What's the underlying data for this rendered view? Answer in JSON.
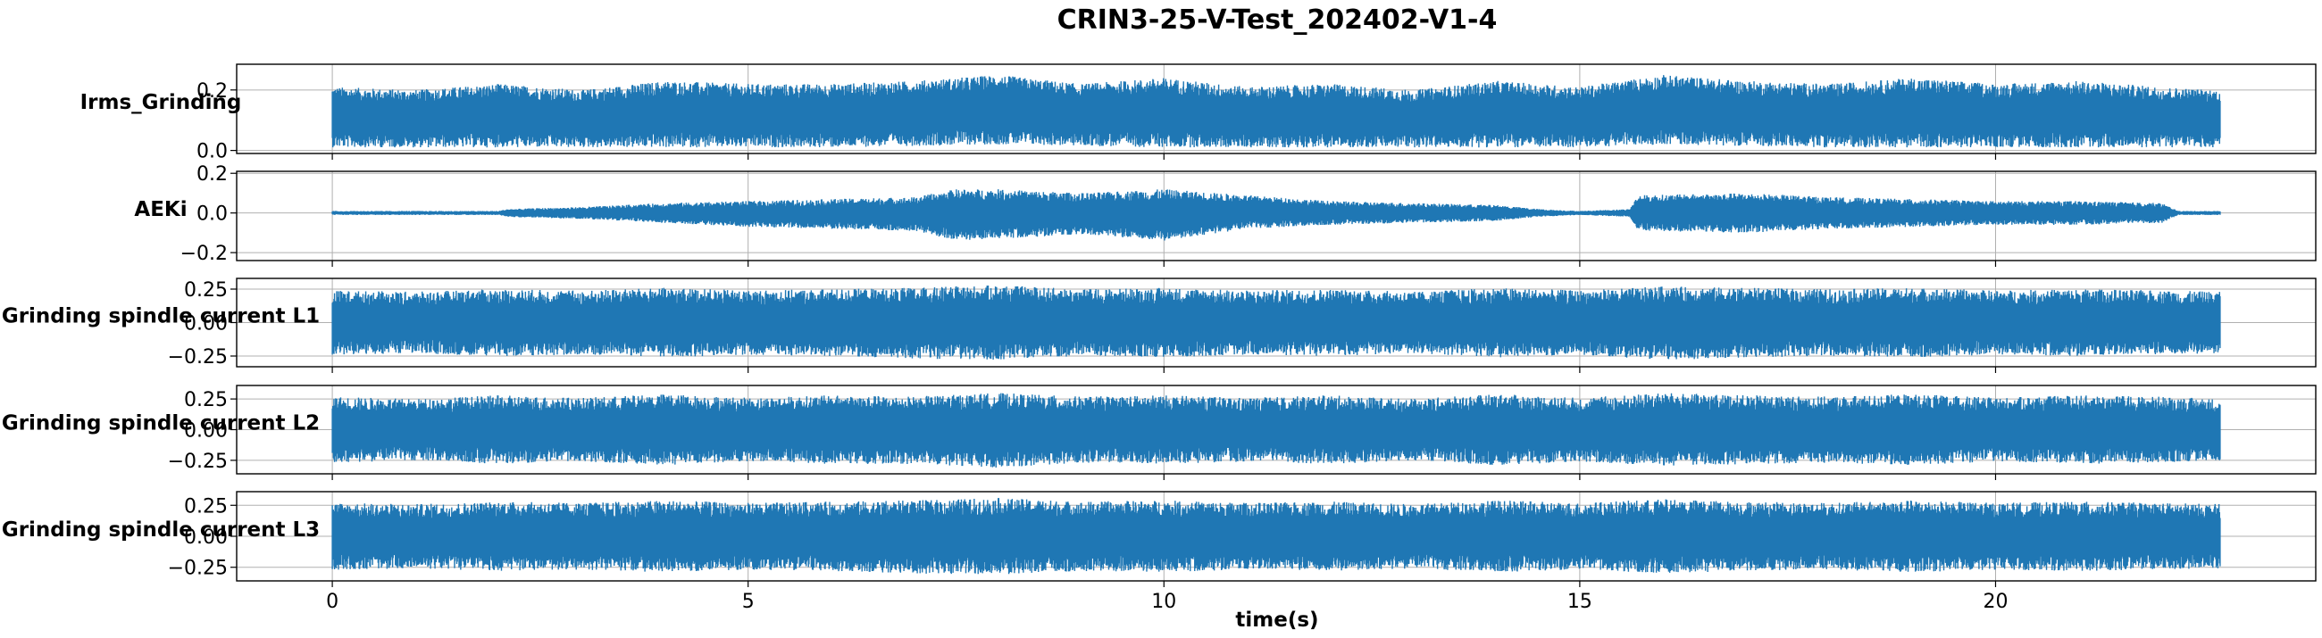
{
  "chart_data": {
    "type": "line",
    "title": "CRIN3-25-V-Test_202402-V1-4",
    "xlabel": "time(s)",
    "xlim": [
      -1.15,
      23.85
    ],
    "xticks": [
      0,
      5,
      10,
      15,
      20
    ],
    "xtick_labels": [
      "0",
      "5",
      "10",
      "15",
      "20"
    ],
    "x_range": [
      0,
      22.7
    ],
    "grid": true,
    "color": "#1f77b4",
    "panels": [
      {
        "name": "Irms_Grinding",
        "ylim": [
          -0.01,
          0.285
        ],
        "yticks": [
          0.0,
          0.2
        ],
        "ytick_labels": [
          "0.0",
          "0.2"
        ],
        "envelope": {
          "t": [
            0,
            1,
            2,
            3,
            4,
            5,
            6,
            7,
            8,
            9,
            10,
            11,
            12,
            13,
            14,
            15,
            16,
            17,
            18,
            19,
            20,
            21,
            22,
            22.7
          ],
          "upper": [
            0.21,
            0.2,
            0.22,
            0.2,
            0.23,
            0.22,
            0.22,
            0.23,
            0.25,
            0.22,
            0.24,
            0.21,
            0.22,
            0.2,
            0.23,
            0.21,
            0.25,
            0.23,
            0.22,
            0.24,
            0.22,
            0.23,
            0.21,
            0.2
          ],
          "lower": [
            0.01,
            0.01,
            0.01,
            0.01,
            0.01,
            0.01,
            0.01,
            0.015,
            0.02,
            0.015,
            0.01,
            0.01,
            0.01,
            0.01,
            0.01,
            0.01,
            0.02,
            0.015,
            0.01,
            0.01,
            0.01,
            0.01,
            0.01,
            0.01
          ]
        }
      },
      {
        "name": "AEKi",
        "ylim": [
          -0.24,
          0.21
        ],
        "yticks": [
          -0.2,
          0.0,
          0.2
        ],
        "ytick_labels": [
          "−0.2",
          "0.0",
          "0.2"
        ],
        "envelope": {
          "t": [
            0,
            1,
            2,
            2.1,
            3,
            4,
            5,
            6,
            7,
            7.5,
            8,
            9,
            10,
            11,
            12,
            13,
            14,
            14.5,
            15,
            15.6,
            15.7,
            17,
            18,
            19,
            20,
            21,
            22,
            22.2,
            22.7
          ],
          "upper": [
            0.01,
            0.01,
            0.01,
            0.02,
            0.03,
            0.05,
            0.06,
            0.07,
            0.08,
            0.12,
            0.12,
            0.1,
            0.12,
            0.09,
            0.06,
            0.05,
            0.04,
            0.02,
            0.01,
            0.02,
            0.09,
            0.1,
            0.08,
            0.07,
            0.06,
            0.06,
            0.05,
            0.01,
            0.01
          ],
          "lower": [
            -0.01,
            -0.01,
            -0.01,
            -0.02,
            -0.03,
            -0.05,
            -0.07,
            -0.08,
            -0.09,
            -0.14,
            -0.13,
            -0.11,
            -0.14,
            -0.08,
            -0.06,
            -0.05,
            -0.04,
            -0.02,
            -0.01,
            -0.02,
            -0.09,
            -0.1,
            -0.08,
            -0.07,
            -0.06,
            -0.06,
            -0.05,
            -0.01,
            -0.01
          ]
        }
      },
      {
        "name": "Grinding spindle current L1",
        "ylim": [
          -0.33,
          0.33
        ],
        "yticks": [
          -0.25,
          0.0,
          0.25
        ],
        "ytick_labels": [
          "−0.25",
          "0.00",
          "0.25"
        ],
        "envelope": {
          "t": [
            0,
            1,
            2,
            3,
            4,
            5,
            6,
            7,
            8,
            9,
            10,
            11,
            12,
            13,
            14,
            15,
            16,
            17,
            18,
            19,
            20,
            21,
            22,
            22.7
          ],
          "upper": [
            0.24,
            0.23,
            0.25,
            0.24,
            0.26,
            0.24,
            0.25,
            0.26,
            0.28,
            0.25,
            0.26,
            0.24,
            0.25,
            0.23,
            0.26,
            0.24,
            0.27,
            0.26,
            0.25,
            0.26,
            0.24,
            0.25,
            0.24,
            0.23
          ],
          "lower": [
            -0.24,
            -0.23,
            -0.25,
            -0.24,
            -0.26,
            -0.24,
            -0.25,
            -0.27,
            -0.28,
            -0.25,
            -0.26,
            -0.24,
            -0.25,
            -0.23,
            -0.26,
            -0.24,
            -0.28,
            -0.26,
            -0.25,
            -0.26,
            -0.24,
            -0.25,
            -0.24,
            -0.23
          ]
        }
      },
      {
        "name": "Grinding spindle current L2",
        "ylim": [
          -0.36,
          0.36
        ],
        "yticks": [
          -0.25,
          0.0,
          0.25
        ],
        "ytick_labels": [
          "−0.25",
          "0.00",
          "0.25"
        ],
        "envelope": {
          "t": [
            0,
            1,
            2,
            3,
            4,
            5,
            6,
            7,
            8,
            9,
            10,
            11,
            12,
            13,
            14,
            15,
            16,
            17,
            18,
            19,
            20,
            21,
            22,
            22.7
          ],
          "upper": [
            0.27,
            0.25,
            0.28,
            0.26,
            0.29,
            0.26,
            0.28,
            0.27,
            0.3,
            0.27,
            0.28,
            0.26,
            0.28,
            0.25,
            0.29,
            0.26,
            0.3,
            0.28,
            0.27,
            0.29,
            0.26,
            0.28,
            0.27,
            0.25
          ],
          "lower": [
            -0.27,
            -0.25,
            -0.28,
            -0.26,
            -0.29,
            -0.26,
            -0.28,
            -0.28,
            -0.31,
            -0.27,
            -0.28,
            -0.26,
            -0.28,
            -0.25,
            -0.29,
            -0.26,
            -0.3,
            -0.28,
            -0.27,
            -0.29,
            -0.26,
            -0.28,
            -0.27,
            -0.25
          ]
        }
      },
      {
        "name": "Grinding spindle current L3",
        "ylim": [
          -0.36,
          0.36
        ],
        "yticks": [
          -0.25,
          0.0,
          0.25
        ],
        "ytick_labels": [
          "−0.25",
          "0.00",
          "0.25"
        ],
        "envelope": {
          "t": [
            0,
            1,
            2,
            3,
            4,
            5,
            6,
            7,
            8,
            9,
            10,
            11,
            12,
            13,
            14,
            15,
            16,
            17,
            18,
            19,
            20,
            21,
            22,
            22.7
          ],
          "upper": [
            0.27,
            0.26,
            0.28,
            0.27,
            0.29,
            0.27,
            0.28,
            0.29,
            0.31,
            0.28,
            0.29,
            0.27,
            0.28,
            0.26,
            0.29,
            0.27,
            0.3,
            0.28,
            0.27,
            0.29,
            0.27,
            0.28,
            0.27,
            0.26
          ],
          "lower": [
            -0.27,
            -0.26,
            -0.28,
            -0.27,
            -0.29,
            -0.27,
            -0.28,
            -0.3,
            -0.31,
            -0.28,
            -0.29,
            -0.27,
            -0.28,
            -0.26,
            -0.29,
            -0.27,
            -0.3,
            -0.28,
            -0.27,
            -0.29,
            -0.27,
            -0.28,
            -0.27,
            -0.26
          ]
        }
      }
    ]
  }
}
